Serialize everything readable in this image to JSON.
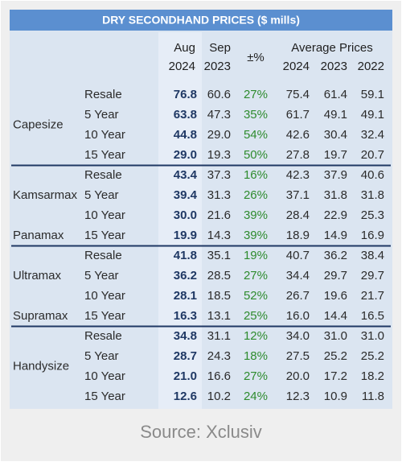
{
  "title": "DRY SECONDHAND PRICES ($ mills)",
  "header": {
    "aug": [
      "Aug",
      "2024"
    ],
    "sep": [
      "Sep",
      "2023"
    ],
    "change": "±%",
    "average": "Average Prices",
    "years": [
      "2024",
      "2023",
      "2022"
    ]
  },
  "groups": [
    {
      "vessels": [
        "Capesize"
      ],
      "rows": [
        [
          "Resale",
          "76.8",
          "60.6",
          "27%",
          "75.4",
          "61.4",
          "59.1"
        ],
        [
          "5 Year",
          "63.8",
          "47.3",
          "35%",
          "61.7",
          "49.1",
          "49.1"
        ],
        [
          "10 Year",
          "44.8",
          "29.0",
          "54%",
          "42.6",
          "30.4",
          "32.4"
        ],
        [
          "15 Year",
          "29.0",
          "19.3",
          "50%",
          "27.8",
          "19.7",
          "20.7"
        ]
      ]
    },
    {
      "vessels": [
        "Kamsarmax",
        "Panamax"
      ],
      "rows": [
        [
          "Resale",
          "43.4",
          "37.3",
          "16%",
          "42.3",
          "37.9",
          "40.6"
        ],
        [
          "5 Year",
          "39.4",
          "31.3",
          "26%",
          "37.1",
          "31.8",
          "31.8"
        ],
        [
          "10 Year",
          "30.0",
          "21.6",
          "39%",
          "28.4",
          "22.9",
          "25.3"
        ],
        [
          "15 Year",
          "19.9",
          "14.3",
          "39%",
          "18.9",
          "14.9",
          "16.9"
        ]
      ]
    },
    {
      "vessels": [
        "Ultramax",
        "Supramax"
      ],
      "rows": [
        [
          "Resale",
          "41.8",
          "35.1",
          "19%",
          "40.7",
          "36.2",
          "38.4"
        ],
        [
          "5 Year",
          "36.2",
          "28.5",
          "27%",
          "34.4",
          "29.7",
          "29.7"
        ],
        [
          "10 Year",
          "28.1",
          "18.5",
          "52%",
          "26.7",
          "19.6",
          "21.7"
        ],
        [
          "15 Year",
          "16.3",
          "13.1",
          "25%",
          "16.0",
          "14.4",
          "16.5"
        ]
      ]
    },
    {
      "vessels": [
        "Handysize"
      ],
      "rows": [
        [
          "Resale",
          "34.8",
          "31.1",
          "12%",
          "34.0",
          "31.0",
          "31.0"
        ],
        [
          "5 Year",
          "28.7",
          "24.3",
          "18%",
          "27.5",
          "25.2",
          "25.2"
        ],
        [
          "10 Year",
          "21.0",
          "16.6",
          "27%",
          "20.0",
          "17.2",
          "18.2"
        ],
        [
          "15 Year",
          "12.6",
          "10.2",
          "24%",
          "12.3",
          "10.9",
          "11.8"
        ]
      ]
    }
  ],
  "source": "Source: Xclusiv"
}
